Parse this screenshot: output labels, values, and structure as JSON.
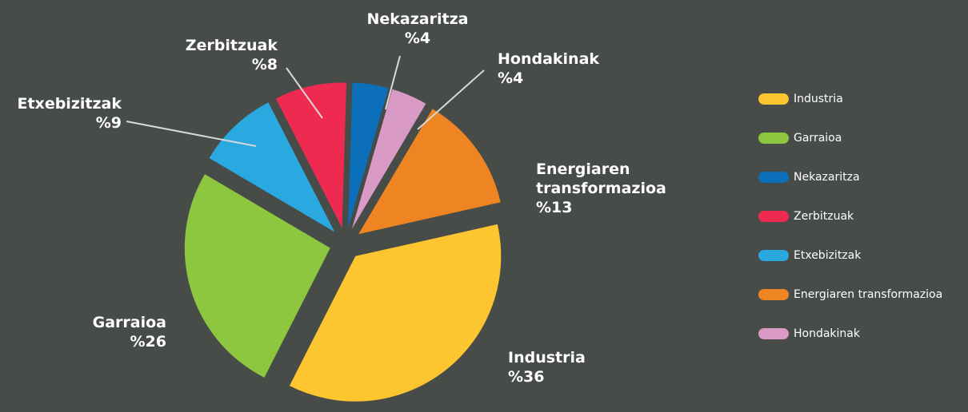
{
  "chart_data": {
    "type": "pie",
    "categories": [
      "Industria",
      "Garraioa",
      "Nekazaritza",
      "Zerbitzuak",
      "Etxebizitzak",
      "Energiaren transformazioa",
      "Hondakinak"
    ],
    "values": [
      36,
      26,
      4,
      8,
      9,
      13,
      4
    ],
    "value_labels": [
      "%36",
      "%26",
      "%4",
      "%8",
      "%9",
      "%13",
      "%4"
    ],
    "colors": [
      "#fdc52f",
      "#8dc63f",
      "#0b6fba",
      "#ee2a50",
      "#29a9e0",
      "#ee8522",
      "#d99bc6"
    ],
    "legend": "right"
  }
}
